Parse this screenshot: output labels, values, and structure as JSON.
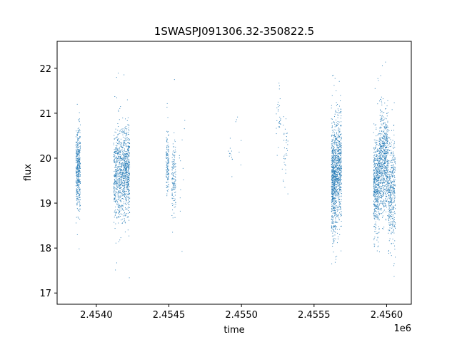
{
  "chart_data": {
    "type": "scatter",
    "title": "1SWASPJ091306.32-350822.5",
    "xlabel": "time",
    "ylabel": "flux",
    "x_offset_label": "1e6",
    "xlim": [
      2.45373,
      2.45617
    ],
    "ylim": [
      16.75,
      22.6
    ],
    "x_ticks": [
      2.454,
      2.4545,
      2.455,
      2.4555,
      2.456
    ],
    "x_tick_labels": [
      "2.4540",
      "2.4545",
      "2.4550",
      "2.4555",
      "2.4560"
    ],
    "y_ticks": [
      17,
      18,
      19,
      20,
      21,
      22
    ],
    "y_tick_labels": [
      "17",
      "18",
      "19",
      "20",
      "21",
      "22"
    ],
    "grid": false,
    "marker_color": "#1f77b4",
    "series": [
      {
        "clusters": [
          {
            "x_min": 2.45386,
            "x_max": 2.45389,
            "y_center": 19.8,
            "y_spread": 0.45,
            "count": 420
          },
          {
            "x_min": 2.45412,
            "x_max": 2.45418,
            "y_center": 19.6,
            "y_spread": 0.5,
            "count": 520
          },
          {
            "x_min": 2.45418,
            "x_max": 2.45423,
            "y_center": 19.75,
            "y_spread": 0.5,
            "count": 560
          },
          {
            "x_min": 2.45448,
            "x_max": 2.4545,
            "y_center": 19.9,
            "y_spread": 0.35,
            "count": 130
          },
          {
            "x_min": 2.45452,
            "x_max": 2.45455,
            "y_center": 19.55,
            "y_spread": 0.4,
            "count": 140
          },
          {
            "x_min": 2.45457,
            "x_max": 2.45461,
            "y_center": 19.7,
            "y_spread": 0.6,
            "count": 12
          },
          {
            "x_min": 2.45491,
            "x_max": 2.45494,
            "y_center": 19.95,
            "y_spread": 0.25,
            "count": 12
          },
          {
            "x_min": 2.45496,
            "x_max": 2.455,
            "y_center": 20.6,
            "y_spread": 0.4,
            "count": 6
          },
          {
            "x_min": 2.45524,
            "x_max": 2.45527,
            "y_center": 21.0,
            "y_spread": 0.4,
            "count": 30
          },
          {
            "x_min": 2.45528,
            "x_max": 2.45532,
            "y_center": 20.2,
            "y_spread": 0.4,
            "count": 35
          },
          {
            "x_min": 2.45562,
            "x_max": 2.45565,
            "y_center": 19.5,
            "y_spread": 0.6,
            "count": 640
          },
          {
            "x_min": 2.45565,
            "x_max": 2.45569,
            "y_center": 19.8,
            "y_spread": 0.6,
            "count": 560
          },
          {
            "x_min": 2.45591,
            "x_max": 2.45595,
            "y_center": 19.4,
            "y_spread": 0.55,
            "count": 520
          },
          {
            "x_min": 2.45595,
            "x_max": 2.45601,
            "y_center": 19.9,
            "y_spread": 0.55,
            "count": 700
          },
          {
            "x_min": 2.45601,
            "x_max": 2.45606,
            "y_center": 19.3,
            "y_spread": 0.55,
            "count": 420
          }
        ]
      }
    ]
  }
}
